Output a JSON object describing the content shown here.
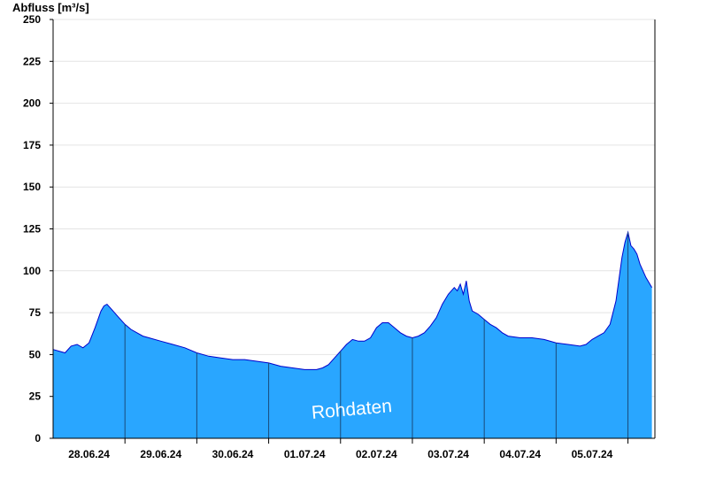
{
  "chart_data": {
    "type": "area",
    "ylabel": "Abfluss [m³/s]",
    "ylim": [
      0,
      250
    ],
    "yticks": [
      0,
      25,
      50,
      75,
      100,
      125,
      150,
      175,
      200,
      225,
      250
    ],
    "xlim": [
      "2024-06-27T12:00",
      "2024-07-05T21:00"
    ],
    "day_boundaries": [
      "2024-06-28T12:00",
      "2024-06-29T12:00",
      "2024-06-30T12:00",
      "2024-07-01T12:00",
      "2024-07-02T12:00",
      "2024-07-03T12:00",
      "2024-07-04T12:00",
      "2024-07-05T12:00"
    ],
    "xticks": [
      {
        "label": "28.06.24",
        "at": "2024-06-28T00:00"
      },
      {
        "label": "29.06.24",
        "at": "2024-06-29T00:00"
      },
      {
        "label": "30.06.24",
        "at": "2024-06-30T00:00"
      },
      {
        "label": "01.07.24",
        "at": "2024-07-01T00:00"
      },
      {
        "label": "02.07.24",
        "at": "2024-07-02T00:00"
      },
      {
        "label": "03.07.24",
        "at": "2024-07-03T00:00"
      },
      {
        "label": "04.07.24",
        "at": "2024-07-04T00:00"
      },
      {
        "label": "05.07.24",
        "at": "2024-07-05T00:00"
      }
    ],
    "grid": true,
    "watermark": "Rohdaten",
    "colors": {
      "fill": "#29a6ff",
      "line": "#0000cc",
      "grid": "#e4e4e4",
      "separator": "#1a4a7a"
    },
    "series": [
      {
        "points": [
          [
            "2024-06-27T12:00",
            53
          ],
          [
            "2024-06-27T14:00",
            52
          ],
          [
            "2024-06-27T16:00",
            51
          ],
          [
            "2024-06-27T18:00",
            55
          ],
          [
            "2024-06-27T20:00",
            56
          ],
          [
            "2024-06-27T22:00",
            54
          ],
          [
            "2024-06-28T00:00",
            57
          ],
          [
            "2024-06-28T02:00",
            66
          ],
          [
            "2024-06-28T04:00",
            76
          ],
          [
            "2024-06-28T05:00",
            79
          ],
          [
            "2024-06-28T06:00",
            80
          ],
          [
            "2024-06-28T08:00",
            76
          ],
          [
            "2024-06-28T10:00",
            72
          ],
          [
            "2024-06-28T12:00",
            68
          ],
          [
            "2024-06-28T14:00",
            65
          ],
          [
            "2024-06-28T16:00",
            63
          ],
          [
            "2024-06-28T18:00",
            61
          ],
          [
            "2024-06-28T20:00",
            60
          ],
          [
            "2024-06-29T00:00",
            58
          ],
          [
            "2024-06-29T04:00",
            56
          ],
          [
            "2024-06-29T08:00",
            54
          ],
          [
            "2024-06-29T12:00",
            51
          ],
          [
            "2024-06-29T16:00",
            49
          ],
          [
            "2024-06-29T20:00",
            48
          ],
          [
            "2024-06-30T00:00",
            47
          ],
          [
            "2024-06-30T04:00",
            47
          ],
          [
            "2024-06-30T08:00",
            46
          ],
          [
            "2024-06-30T12:00",
            45
          ],
          [
            "2024-06-30T16:00",
            43
          ],
          [
            "2024-06-30T20:00",
            42
          ],
          [
            "2024-07-01T00:00",
            41
          ],
          [
            "2024-07-01T04:00",
            41
          ],
          [
            "2024-07-01T06:00",
            42
          ],
          [
            "2024-07-01T08:00",
            44
          ],
          [
            "2024-07-01T10:00",
            48
          ],
          [
            "2024-07-01T12:00",
            52
          ],
          [
            "2024-07-01T14:00",
            56
          ],
          [
            "2024-07-01T16:00",
            59
          ],
          [
            "2024-07-01T18:00",
            58
          ],
          [
            "2024-07-01T20:00",
            58
          ],
          [
            "2024-07-01T22:00",
            60
          ],
          [
            "2024-07-02T00:00",
            66
          ],
          [
            "2024-07-02T02:00",
            69
          ],
          [
            "2024-07-02T04:00",
            69
          ],
          [
            "2024-07-02T06:00",
            66
          ],
          [
            "2024-07-02T08:00",
            63
          ],
          [
            "2024-07-02T10:00",
            61
          ],
          [
            "2024-07-02T12:00",
            60
          ],
          [
            "2024-07-02T14:00",
            61
          ],
          [
            "2024-07-02T16:00",
            63
          ],
          [
            "2024-07-02T18:00",
            67
          ],
          [
            "2024-07-02T20:00",
            72
          ],
          [
            "2024-07-02T22:00",
            80
          ],
          [
            "2024-07-03T00:00",
            86
          ],
          [
            "2024-07-03T02:00",
            90
          ],
          [
            "2024-07-03T03:00",
            88
          ],
          [
            "2024-07-03T04:00",
            92
          ],
          [
            "2024-07-03T05:00",
            86
          ],
          [
            "2024-07-03T06:00",
            94
          ],
          [
            "2024-07-03T07:00",
            82
          ],
          [
            "2024-07-03T08:00",
            76
          ],
          [
            "2024-07-03T10:00",
            74
          ],
          [
            "2024-07-03T12:00",
            71
          ],
          [
            "2024-07-03T14:00",
            68
          ],
          [
            "2024-07-03T16:00",
            66
          ],
          [
            "2024-07-03T18:00",
            63
          ],
          [
            "2024-07-03T20:00",
            61
          ],
          [
            "2024-07-04T00:00",
            60
          ],
          [
            "2024-07-04T04:00",
            60
          ],
          [
            "2024-07-04T08:00",
            59
          ],
          [
            "2024-07-04T12:00",
            57
          ],
          [
            "2024-07-04T16:00",
            56
          ],
          [
            "2024-07-04T20:00",
            55
          ],
          [
            "2024-07-04T22:00",
            56
          ],
          [
            "2024-07-05T00:00",
            59
          ],
          [
            "2024-07-05T02:00",
            61
          ],
          [
            "2024-07-05T04:00",
            63
          ],
          [
            "2024-07-05T06:00",
            68
          ],
          [
            "2024-07-05T08:00",
            82
          ],
          [
            "2024-07-05T09:00",
            95
          ],
          [
            "2024-07-05T10:00",
            108
          ],
          [
            "2024-07-05T11:00",
            117
          ],
          [
            "2024-07-05T12:00",
            123
          ],
          [
            "2024-07-05T13:00",
            115
          ],
          [
            "2024-07-05T14:00",
            113
          ],
          [
            "2024-07-05T15:00",
            110
          ],
          [
            "2024-07-05T16:00",
            104
          ],
          [
            "2024-07-05T18:00",
            96
          ],
          [
            "2024-07-05T20:00",
            90
          ]
        ]
      }
    ]
  }
}
